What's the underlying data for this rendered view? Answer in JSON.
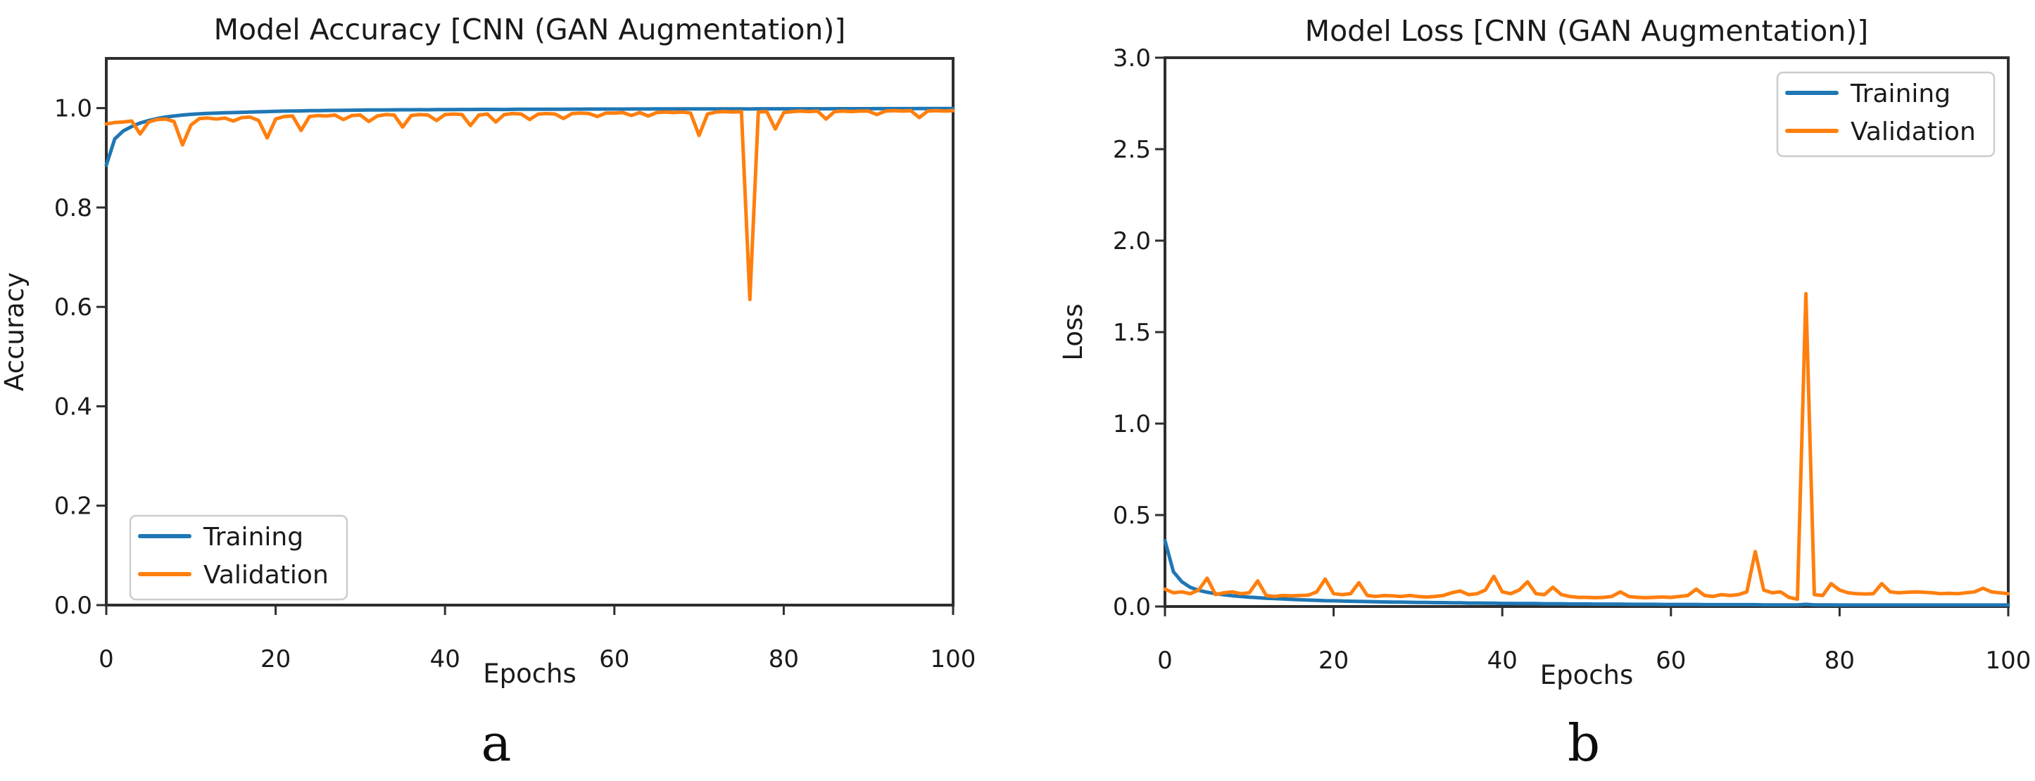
{
  "figure": {
    "captions": [
      "a",
      "b"
    ],
    "background": "#ffffff"
  },
  "style": {
    "training_color": "#1f77b4",
    "validation_color": "#ff7f0e",
    "axis_color": "#2e2e2e",
    "text_color": "#1a1a1a",
    "legend_border": "#cccccc",
    "legend_fill": "#ffffff"
  },
  "chart_data": [
    {
      "type": "line",
      "title": "Model Accuracy [CNN (GAN Augmentation)]",
      "xlabel": "Epochs",
      "ylabel": "Accuracy",
      "xlim": [
        0,
        100
      ],
      "ylim": [
        0,
        1.1
      ],
      "grid": false,
      "legend_position": "lower-left",
      "legend_entries": [
        "Training",
        "Validation"
      ],
      "xticks": [
        0,
        20,
        40,
        60,
        80,
        100
      ],
      "xticklabels": [
        "0",
        "20",
        "40",
        "60",
        "80",
        "100"
      ],
      "yticks": [
        0.0,
        0.2,
        0.4,
        0.6,
        0.8,
        1.0
      ],
      "yticklabels": [
        "0.0",
        "0.2",
        "0.4",
        "0.6",
        "0.8",
        "1.0"
      ],
      "x": [
        0,
        1,
        2,
        3,
        4,
        5,
        6,
        7,
        8,
        9,
        10,
        11,
        12,
        13,
        14,
        15,
        16,
        17,
        18,
        19,
        20,
        21,
        22,
        23,
        24,
        25,
        26,
        27,
        28,
        29,
        30,
        31,
        32,
        33,
        34,
        35,
        36,
        37,
        38,
        39,
        40,
        41,
        42,
        43,
        44,
        45,
        46,
        47,
        48,
        49,
        50,
        51,
        52,
        53,
        54,
        55,
        56,
        57,
        58,
        59,
        60,
        61,
        62,
        63,
        64,
        65,
        66,
        67,
        68,
        69,
        70,
        71,
        72,
        73,
        74,
        75,
        76,
        77,
        78,
        79,
        80,
        81,
        82,
        83,
        84,
        85,
        86,
        87,
        88,
        89,
        90,
        91,
        92,
        93,
        94,
        95,
        96,
        97,
        98,
        99,
        100
      ],
      "series": [
        {
          "name": "Training",
          "color": "#1f77b4",
          "values": [
            0.885,
            0.938,
            0.954,
            0.963,
            0.97,
            0.975,
            0.979,
            0.982,
            0.984,
            0.986,
            0.9875,
            0.9885,
            0.9895,
            0.99,
            0.9905,
            0.991,
            0.9915,
            0.992,
            0.9925,
            0.993,
            0.9935,
            0.994,
            0.9942,
            0.9944,
            0.9948,
            0.995,
            0.9952,
            0.9954,
            0.9956,
            0.9958,
            0.996,
            0.9962,
            0.9963,
            0.9964,
            0.9965,
            0.9966,
            0.9967,
            0.9968,
            0.9966,
            0.9969,
            0.997,
            0.9971,
            0.9972,
            0.9972,
            0.9973,
            0.9974,
            0.9974,
            0.9972,
            0.9975,
            0.9976,
            0.9976,
            0.9977,
            0.9977,
            0.9978,
            0.9978,
            0.9979,
            0.9979,
            0.998,
            0.998,
            0.998,
            0.9981,
            0.9981,
            0.9982,
            0.9982,
            0.9982,
            0.9983,
            0.9983,
            0.9983,
            0.9984,
            0.9984,
            0.9984,
            0.9984,
            0.9985,
            0.9985,
            0.9985,
            0.9985,
            0.9982,
            0.9986,
            0.9986,
            0.9986,
            0.9986,
            0.9987,
            0.9987,
            0.9987,
            0.9987,
            0.9987,
            0.9988,
            0.9988,
            0.9988,
            0.9988,
            0.9988,
            0.9989,
            0.9989,
            0.9989,
            0.9989,
            0.9989,
            0.999,
            0.999,
            0.999,
            0.999,
            0.999
          ]
        },
        {
          "name": "Validation",
          "color": "#ff7f0e",
          "values": [
            0.968,
            0.971,
            0.972,
            0.974,
            0.948,
            0.972,
            0.977,
            0.978,
            0.973,
            0.926,
            0.966,
            0.979,
            0.98,
            0.978,
            0.98,
            0.974,
            0.981,
            0.982,
            0.975,
            0.94,
            0.978,
            0.983,
            0.984,
            0.955,
            0.983,
            0.985,
            0.984,
            0.986,
            0.977,
            0.985,
            0.986,
            0.973,
            0.984,
            0.987,
            0.986,
            0.962,
            0.985,
            0.987,
            0.986,
            0.975,
            0.987,
            0.988,
            0.987,
            0.965,
            0.986,
            0.988,
            0.972,
            0.987,
            0.989,
            0.988,
            0.977,
            0.988,
            0.989,
            0.988,
            0.979,
            0.989,
            0.99,
            0.989,
            0.983,
            0.99,
            0.99,
            0.991,
            0.985,
            0.991,
            0.984,
            0.991,
            0.992,
            0.991,
            0.992,
            0.99,
            0.945,
            0.988,
            0.992,
            0.993,
            0.992,
            0.993,
            0.615,
            0.992,
            0.993,
            0.958,
            0.991,
            0.993,
            0.994,
            0.993,
            0.994,
            0.978,
            0.993,
            0.994,
            0.993,
            0.994,
            0.994,
            0.987,
            0.994,
            0.995,
            0.994,
            0.995,
            0.981,
            0.994,
            0.995,
            0.994,
            0.995
          ]
        }
      ]
    },
    {
      "type": "line",
      "title": "Model Loss [CNN (GAN Augmentation)]",
      "xlabel": "Epochs",
      "ylabel": "Loss",
      "xlim": [
        0,
        100
      ],
      "ylim": [
        0,
        3.0
      ],
      "grid": false,
      "legend_position": "upper-right",
      "legend_entries": [
        "Training",
        "Validation"
      ],
      "xticks": [
        0,
        20,
        40,
        60,
        80,
        100
      ],
      "xticklabels": [
        "0",
        "20",
        "40",
        "60",
        "80",
        "100"
      ],
      "yticks": [
        0.0,
        0.5,
        1.0,
        1.5,
        2.0,
        2.5,
        3.0
      ],
      "yticklabels": [
        "0.0",
        "0.5",
        "1.0",
        "1.5",
        "2.0",
        "2.5",
        "3.0"
      ],
      "x": [
        0,
        1,
        2,
        3,
        4,
        5,
        6,
        7,
        8,
        9,
        10,
        11,
        12,
        13,
        14,
        15,
        16,
        17,
        18,
        19,
        20,
        21,
        22,
        23,
        24,
        25,
        26,
        27,
        28,
        29,
        30,
        31,
        32,
        33,
        34,
        35,
        36,
        37,
        38,
        39,
        40,
        41,
        42,
        43,
        44,
        45,
        46,
        47,
        48,
        49,
        50,
        51,
        52,
        53,
        54,
        55,
        56,
        57,
        58,
        59,
        60,
        61,
        62,
        63,
        64,
        65,
        66,
        67,
        68,
        69,
        70,
        71,
        72,
        73,
        74,
        75,
        76,
        77,
        78,
        79,
        80,
        81,
        82,
        83,
        84,
        85,
        86,
        87,
        88,
        89,
        90,
        91,
        92,
        93,
        94,
        95,
        96,
        97,
        98,
        99,
        100
      ],
      "series": [
        {
          "name": "Training",
          "color": "#1f77b4",
          "values": [
            0.36,
            0.19,
            0.135,
            0.105,
            0.088,
            0.078,
            0.07,
            0.064,
            0.059,
            0.055,
            0.051,
            0.048,
            0.045,
            0.043,
            0.041,
            0.039,
            0.037,
            0.035,
            0.034,
            0.032,
            0.031,
            0.03,
            0.029,
            0.028,
            0.027,
            0.026,
            0.025,
            0.024,
            0.024,
            0.023,
            0.022,
            0.022,
            0.021,
            0.021,
            0.02,
            0.02,
            0.019,
            0.019,
            0.018,
            0.018,
            0.017,
            0.017,
            0.016,
            0.016,
            0.016,
            0.015,
            0.015,
            0.015,
            0.014,
            0.014,
            0.014,
            0.013,
            0.013,
            0.013,
            0.013,
            0.012,
            0.012,
            0.012,
            0.012,
            0.011,
            0.011,
            0.011,
            0.011,
            0.011,
            0.01,
            0.01,
            0.01,
            0.01,
            0.01,
            0.01,
            0.01,
            0.009,
            0.009,
            0.009,
            0.009,
            0.009,
            0.012,
            0.009,
            0.009,
            0.009,
            0.008,
            0.008,
            0.008,
            0.008,
            0.008,
            0.008,
            0.008,
            0.008,
            0.008,
            0.008,
            0.008,
            0.008,
            0.008,
            0.008,
            0.008,
            0.008,
            0.008,
            0.008,
            0.008,
            0.008,
            0.008
          ]
        },
        {
          "name": "Validation",
          "color": "#ff7f0e",
          "values": [
            0.095,
            0.075,
            0.08,
            0.07,
            0.09,
            0.155,
            0.065,
            0.075,
            0.08,
            0.07,
            0.075,
            0.14,
            0.06,
            0.055,
            0.06,
            0.058,
            0.06,
            0.062,
            0.08,
            0.15,
            0.07,
            0.065,
            0.07,
            0.13,
            0.06,
            0.055,
            0.06,
            0.058,
            0.055,
            0.06,
            0.055,
            0.052,
            0.055,
            0.06,
            0.075,
            0.085,
            0.065,
            0.07,
            0.09,
            0.165,
            0.08,
            0.07,
            0.09,
            0.135,
            0.07,
            0.065,
            0.105,
            0.065,
            0.055,
            0.05,
            0.05,
            0.048,
            0.05,
            0.055,
            0.08,
            0.055,
            0.05,
            0.048,
            0.05,
            0.052,
            0.05,
            0.055,
            0.06,
            0.095,
            0.06,
            0.055,
            0.065,
            0.06,
            0.065,
            0.08,
            0.3,
            0.09,
            0.075,
            0.08,
            0.05,
            0.04,
            1.71,
            0.065,
            0.06,
            0.125,
            0.09,
            0.075,
            0.07,
            0.068,
            0.07,
            0.125,
            0.08,
            0.075,
            0.078,
            0.08,
            0.078,
            0.075,
            0.07,
            0.072,
            0.07,
            0.075,
            0.08,
            0.1,
            0.08,
            0.075,
            0.07
          ]
        }
      ]
    }
  ]
}
